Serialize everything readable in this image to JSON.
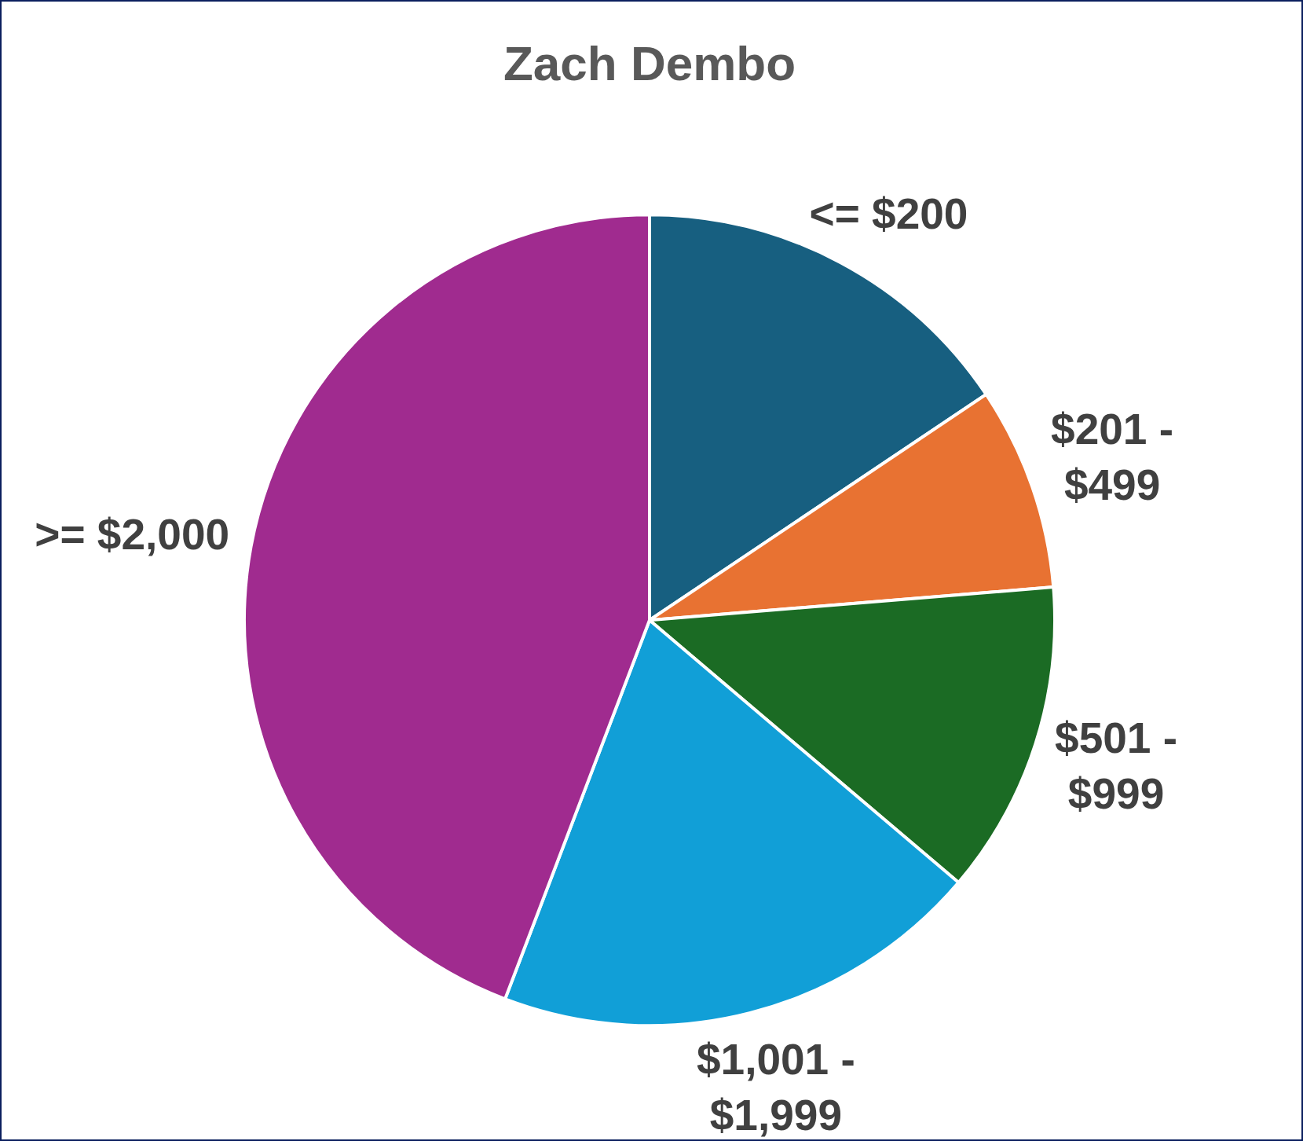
{
  "chart_data": {
    "type": "pie",
    "title": "Zach Dembo",
    "categories": [
      "<= $200",
      "$201 - $499",
      "$501 - $999",
      "$1,001 - $1,999",
      ">= $2,000"
    ],
    "values": [
      15.6,
      8.1,
      12.5,
      19.6,
      44.2
    ],
    "colors": [
      "#175f80",
      "#e87232",
      "#1b6b24",
      "#119fd7",
      "#a02b8f"
    ],
    "legend": false
  }
}
